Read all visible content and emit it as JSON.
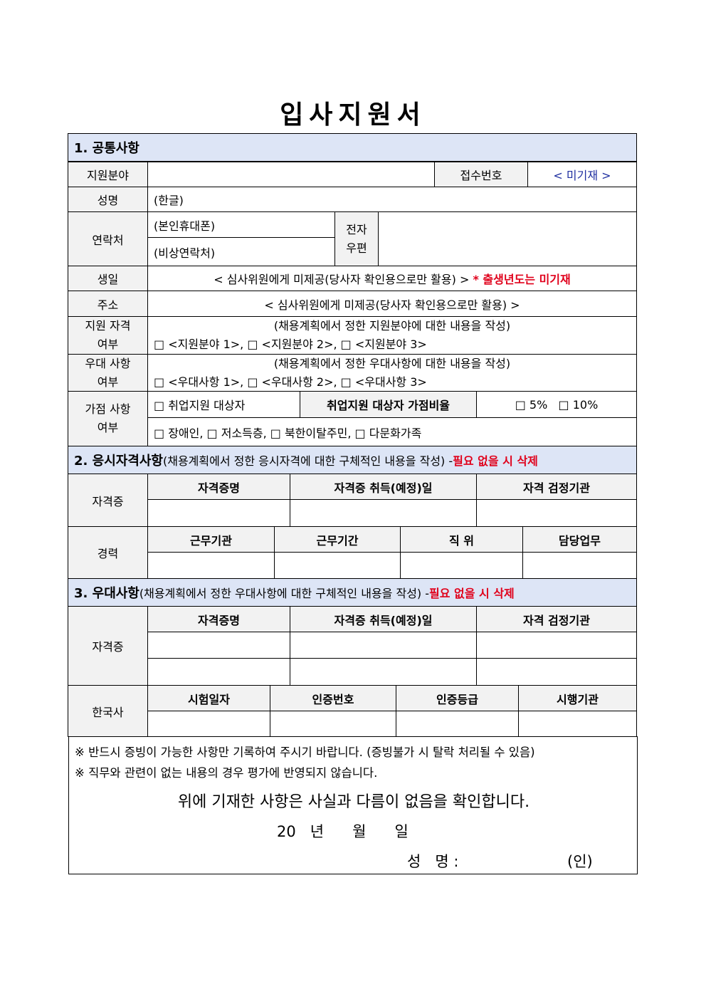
{
  "title": "입사지원서",
  "section1": {
    "header": "1. 공통사항",
    "field_label": "지원분야",
    "receipt_label": "접수번호",
    "receipt_value": "< 미기재 >",
    "name_label": "성명",
    "name_hint": "(한글)",
    "contact_label": "연락처",
    "phone_hint": "(본인휴대폰)",
    "emergency_hint": "(비상연락처)",
    "email_label_1": "전자",
    "email_label_2": "우편",
    "birth_label": "생일",
    "birth_note": "< 심사위원에게 미제공(당사자 확인용으로만 활용) >",
    "birth_warning": "* 출생년도는 미기재",
    "address_label": "주소",
    "address_note": "< 심사위원에게 미제공(당사자 확인용으로만 활용) >",
    "qual_label_1": "지원 자격",
    "qual_label_2": "여부",
    "qual_note": "(채용계획에서 정한 지원분야에 대한 내용을 작성)",
    "qual_options": "□ <지원분야 1>, □ <지원분야 2>, □ <지원분야 3>",
    "pref_label_1": "우대 사항",
    "pref_label_2": "여부",
    "pref_note": "(채용계획에서 정한 우대사항에 대한 내용을 작성)",
    "pref_options": "□ <우대사항 1>, □ <우대사항 2>, □ <우대사항 3>",
    "bonus_label_1": "가점 사항",
    "bonus_label_2": "여부",
    "bonus_employment": "□ 취업지원 대상자",
    "bonus_ratio_label": "취업지원 대상자 가점비율",
    "bonus_ratio_options": "□ 5%   □ 10%",
    "bonus_other": "□ 장애인, □ 저소득층, □ 북한이탈주민, □ 다문화가족"
  },
  "section2": {
    "header": "2. 응시자격사항",
    "sub": "(채용계획에서 정한 응시자격에 대한 구체적인 내용을 작성) - ",
    "warning": "필요 없을 시 삭제",
    "cert_label": "자격증",
    "cert_cols": [
      "자격증명",
      "자격증 취득(예정)일",
      "자격 검정기관"
    ],
    "career_label": "경력",
    "career_cols": [
      "근무기관",
      "근무기간",
      "직 위",
      "담당업무"
    ]
  },
  "section3": {
    "header": "3. 우대사항",
    "sub": "(채용계획에서 정한 우대사항에 대한 구체적인 내용을 작성) - ",
    "warning": "필요 없을 시 삭제",
    "cert_label": "자격증",
    "cert_cols": [
      "자격증명",
      "자격증 취득(예정)일",
      "자격 검정기관"
    ],
    "history_label": "한국사",
    "history_cols": [
      "시험일자",
      "인증번호",
      "인증등급",
      "시행기관"
    ]
  },
  "footer": {
    "note1": "※ 반드시 증빙이 가능한 사항만 기록하여 주시기 바랍니다. (증빙불가 시 탈락 처리될 수 있음)",
    "note2": "※ 직무와 관련이 없는 내용의 경우 평가에 반영되지 않습니다.",
    "confirm": "위에 기재한 사항은 사실과 다름이 없음을 확인합니다.",
    "date": "20   년      월      일",
    "sign_label": "성   명 :",
    "seal": "(인)"
  }
}
